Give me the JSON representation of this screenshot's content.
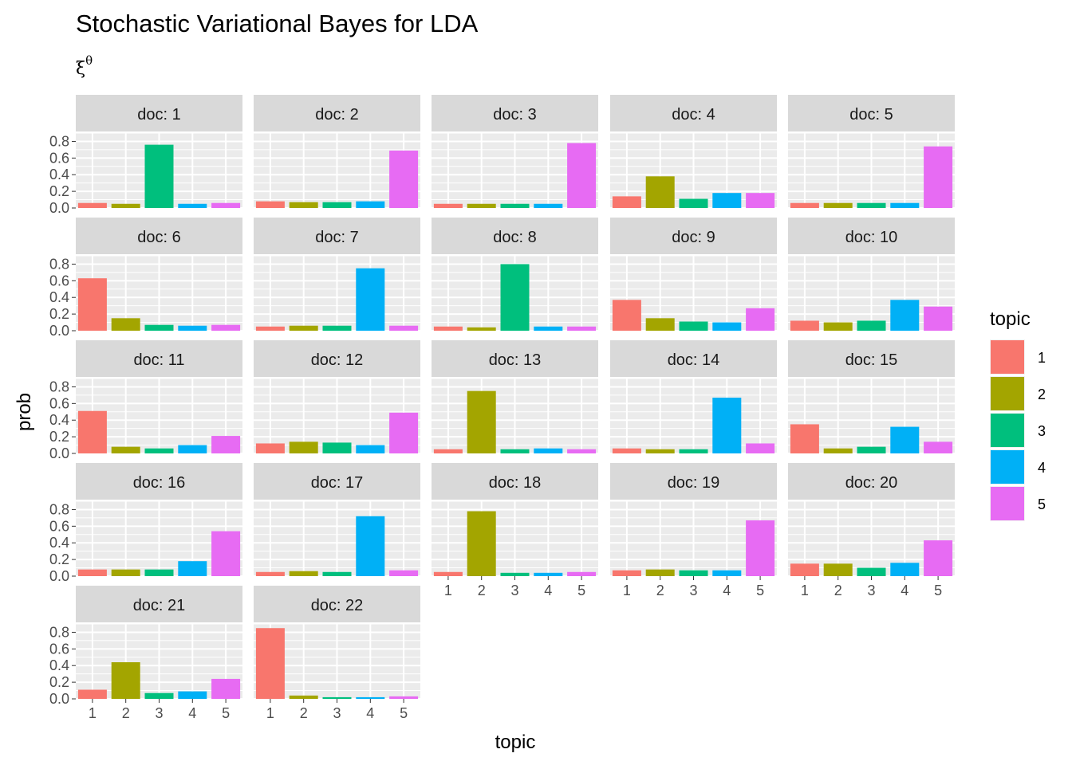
{
  "chart_data": {
    "type": "bar",
    "title": "Stochastic Variational Bayes for LDA",
    "subtitle": {
      "base": "ξ",
      "superscript": "θ"
    },
    "xlabel": "topic",
    "ylabel": "prob",
    "categories": [
      "1",
      "2",
      "3",
      "4",
      "5"
    ],
    "ylim": [
      0,
      0.9
    ],
    "y_ticks": [
      "0.0",
      "0.2",
      "0.4",
      "0.6",
      "0.8"
    ],
    "grid": true,
    "facet_ncol": 5,
    "legend": {
      "title": "topic",
      "position": "right",
      "entries": [
        {
          "label": "1",
          "color": "#F8766D"
        },
        {
          "label": "2",
          "color": "#A3A500"
        },
        {
          "label": "3",
          "color": "#00BF7D"
        },
        {
          "label": "4",
          "color": "#00B0F6"
        },
        {
          "label": "5",
          "color": "#E76BF3"
        }
      ]
    },
    "facets": [
      {
        "label": "doc: 1",
        "values": [
          0.06,
          0.05,
          0.76,
          0.05,
          0.06
        ]
      },
      {
        "label": "doc: 2",
        "values": [
          0.08,
          0.07,
          0.07,
          0.08,
          0.69
        ]
      },
      {
        "label": "doc: 3",
        "values": [
          0.05,
          0.05,
          0.05,
          0.05,
          0.78
        ]
      },
      {
        "label": "doc: 4",
        "values": [
          0.14,
          0.38,
          0.11,
          0.18,
          0.18
        ]
      },
      {
        "label": "doc: 5",
        "values": [
          0.06,
          0.06,
          0.06,
          0.06,
          0.74
        ]
      },
      {
        "label": "doc: 6",
        "values": [
          0.63,
          0.15,
          0.07,
          0.06,
          0.07
        ]
      },
      {
        "label": "doc: 7",
        "values": [
          0.05,
          0.06,
          0.06,
          0.75,
          0.06
        ]
      },
      {
        "label": "doc: 8",
        "values": [
          0.05,
          0.04,
          0.8,
          0.05,
          0.05
        ]
      },
      {
        "label": "doc: 9",
        "values": [
          0.37,
          0.15,
          0.11,
          0.1,
          0.27
        ]
      },
      {
        "label": "doc: 10",
        "values": [
          0.12,
          0.1,
          0.12,
          0.37,
          0.29
        ]
      },
      {
        "label": "doc: 11",
        "values": [
          0.51,
          0.08,
          0.06,
          0.1,
          0.21
        ]
      },
      {
        "label": "doc: 12",
        "values": [
          0.12,
          0.14,
          0.13,
          0.1,
          0.49
        ]
      },
      {
        "label": "doc: 13",
        "values": [
          0.05,
          0.75,
          0.05,
          0.06,
          0.05
        ]
      },
      {
        "label": "doc: 14",
        "values": [
          0.06,
          0.05,
          0.05,
          0.67,
          0.12
        ]
      },
      {
        "label": "doc: 15",
        "values": [
          0.35,
          0.06,
          0.08,
          0.32,
          0.14
        ]
      },
      {
        "label": "doc: 16",
        "values": [
          0.08,
          0.08,
          0.08,
          0.18,
          0.54
        ]
      },
      {
        "label": "doc: 17",
        "values": [
          0.05,
          0.06,
          0.05,
          0.72,
          0.07
        ]
      },
      {
        "label": "doc: 18",
        "values": [
          0.05,
          0.78,
          0.04,
          0.04,
          0.05
        ]
      },
      {
        "label": "doc: 19",
        "values": [
          0.07,
          0.08,
          0.07,
          0.07,
          0.67
        ]
      },
      {
        "label": "doc: 20",
        "values": [
          0.15,
          0.15,
          0.1,
          0.16,
          0.43
        ]
      },
      {
        "label": "doc: 21",
        "values": [
          0.11,
          0.44,
          0.07,
          0.09,
          0.24
        ]
      },
      {
        "label": "doc: 22",
        "values": [
          0.85,
          0.04,
          0.02,
          0.02,
          0.03
        ]
      }
    ]
  }
}
